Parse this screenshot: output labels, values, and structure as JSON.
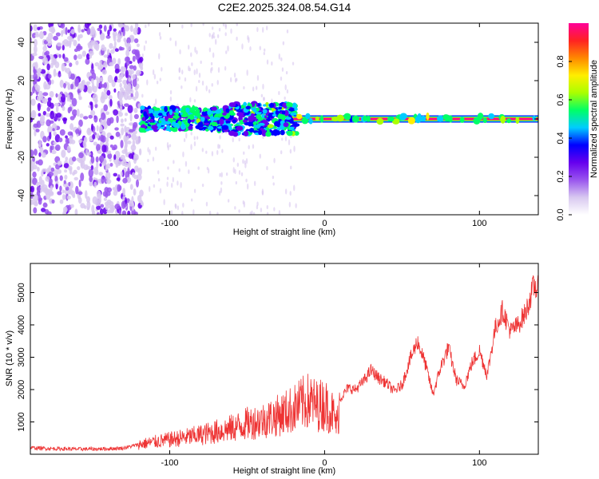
{
  "chart_data": [
    {
      "type": "heatmap",
      "title": "C2E2.2025.324.08.54.G14",
      "xlabel": "Height of straight line (km)",
      "ylabel": "Frequency (Hz)",
      "xlim": [
        -190,
        138
      ],
      "ylim": [
        -50,
        50
      ],
      "xticks": [
        -100,
        0,
        100
      ],
      "yticks": [
        -40,
        -20,
        0,
        20,
        40
      ],
      "colorbar": {
        "label": "Normalized spectral amplitude",
        "range": [
          0,
          1
        ],
        "ticks": [
          "0.0",
          "0.2",
          "0.4",
          "0.6",
          "0.8"
        ],
        "colors": [
          "#ffffff",
          "#d8c8f0",
          "#9955ee",
          "#6600ee",
          "#0000ff",
          "#00ccff",
          "#00ff66",
          "#aaff00",
          "#ffee00",
          "#ff8800",
          "#ff2222",
          "#ff0099"
        ]
      },
      "regions": [
        {
          "x_range": [
            -190,
            -118
          ],
          "freq_range": [
            -50,
            50
          ],
          "level": 0.15,
          "description_pattern": "broadband scatter"
        },
        {
          "x_range": [
            -118,
            -60
          ],
          "freq_range": [
            -6,
            6
          ],
          "level": 0.35
        },
        {
          "x_range": [
            -60,
            -20
          ],
          "freq_range": [
            -8,
            8
          ],
          "level": 0.45
        },
        {
          "x_range": [
            -20,
            138
          ],
          "freq_range": [
            -1.5,
            1.5
          ],
          "level": 1.0
        }
      ]
    },
    {
      "type": "line",
      "title": "",
      "xlabel": "Height of straight line (km)",
      "ylabel": "SNR (10 * v/v)",
      "xlim": [
        -190,
        138
      ],
      "ylim": [
        0,
        5900
      ],
      "xticks": [
        -100,
        0,
        100
      ],
      "yticks": [
        1000,
        2000,
        3000,
        4000,
        5000
      ],
      "color": "#ee3333",
      "series": [
        {
          "name": "SNR",
          "x": [
            -190,
            -180,
            -170,
            -160,
            -150,
            -140,
            -130,
            -120,
            -110,
            -100,
            -90,
            -80,
            -70,
            -60,
            -50,
            -40,
            -30,
            -20,
            -15,
            -10,
            -5,
            0,
            5,
            8,
            10,
            15,
            20,
            25,
            30,
            35,
            40,
            45,
            50,
            55,
            60,
            65,
            70,
            75,
            80,
            85,
            90,
            95,
            100,
            105,
            110,
            115,
            120,
            125,
            130,
            135,
            138
          ],
          "y": [
            200,
            180,
            170,
            160,
            160,
            170,
            190,
            300,
            380,
            450,
            520,
            600,
            700,
            800,
            950,
            1050,
            1200,
            1400,
            1550,
            1650,
            1500,
            1550,
            1300,
            900,
            1700,
            2050,
            2000,
            2250,
            2600,
            2350,
            2200,
            1950,
            2150,
            2900,
            3500,
            2800,
            1850,
            2700,
            3300,
            2300,
            2100,
            2800,
            3200,
            2450,
            3850,
            4450,
            3800,
            4000,
            4400,
            5200,
            5100
          ]
        }
      ]
    }
  ]
}
